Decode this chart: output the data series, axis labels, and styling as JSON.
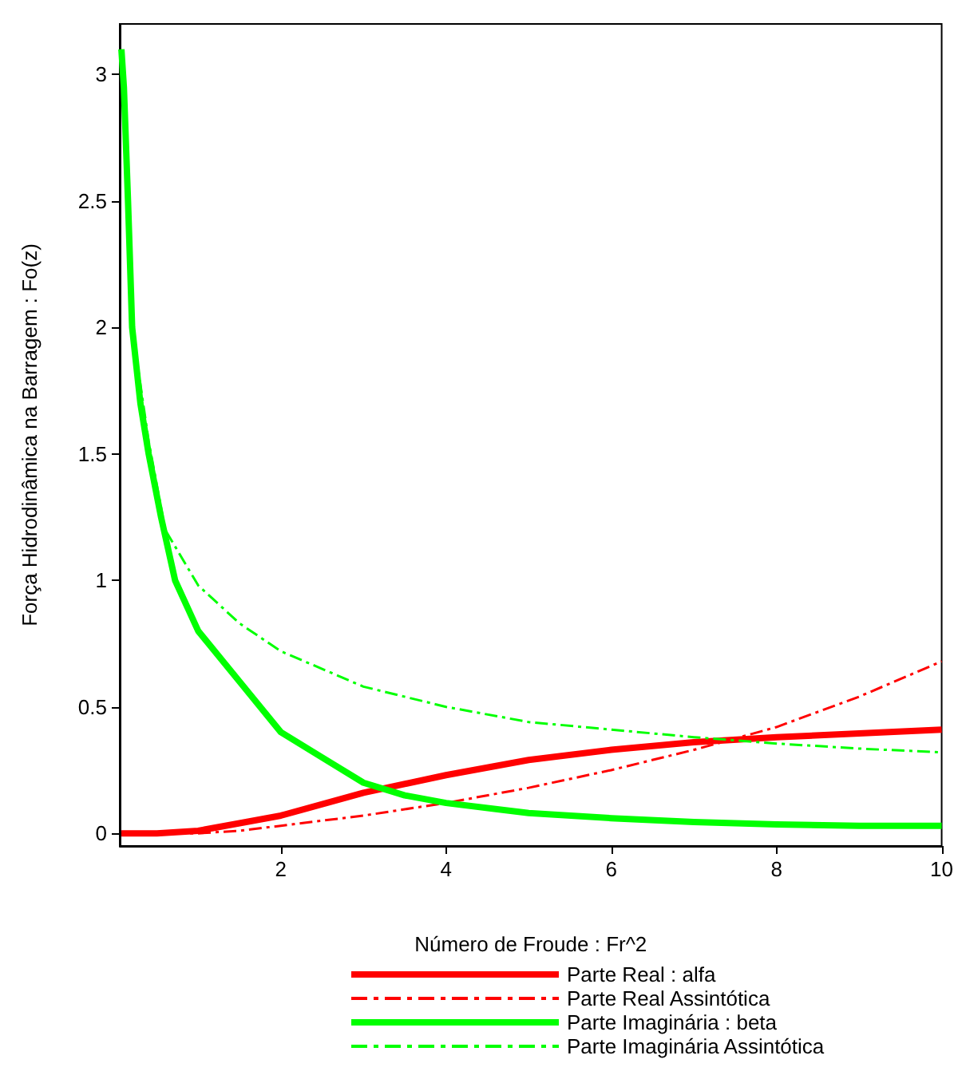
{
  "chart_data": {
    "type": "line",
    "xlabel": "Número de Froude : Fr^2",
    "ylabel": "Força Hidrodinâmica na Barragem : Fo(z)",
    "xlim": [
      0.05,
      10
    ],
    "ylim": [
      -0.05,
      3.2
    ],
    "xticks": [
      2,
      4,
      6,
      8,
      10
    ],
    "yticks": [
      0,
      0.5,
      1,
      1.5,
      2,
      2.5,
      3
    ],
    "grid": false,
    "legend": "bottom",
    "marker": "none",
    "series": [
      {
        "name": "Parte Real : alfa",
        "color": "#ff0000",
        "line_style": "solid",
        "x": [
          0.07,
          0.5,
          1,
          1.5,
          2,
          3,
          4,
          5,
          6,
          7,
          8,
          9,
          10
        ],
        "values": [
          0,
          0,
          0.01,
          0.04,
          0.07,
          0.16,
          0.23,
          0.29,
          0.33,
          0.36,
          0.38,
          0.395,
          0.41
        ]
      },
      {
        "name": "Parte Real Assintótica",
        "color": "#ff0000",
        "line_style": "dashed",
        "x": [
          0.07,
          1,
          1.5,
          2,
          3,
          4,
          5,
          6,
          7,
          8,
          9,
          10
        ],
        "values": [
          0,
          0,
          0.01,
          0.03,
          0.07,
          0.12,
          0.18,
          0.25,
          0.33,
          0.42,
          0.54,
          0.68
        ]
      },
      {
        "name": "Parte Imaginária : beta",
        "color": "#00ff00",
        "line_style": "solid",
        "x": [
          0.07,
          0.1,
          0.15,
          0.2,
          0.3,
          0.4,
          0.55,
          0.72,
          1,
          1.5,
          2,
          2.5,
          3,
          3.5,
          4,
          5,
          6,
          7,
          8,
          9,
          10
        ],
        "values": [
          3.1,
          2.95,
          2.5,
          2.0,
          1.7,
          1.5,
          1.25,
          1.0,
          0.8,
          0.6,
          0.4,
          0.3,
          0.2,
          0.15,
          0.12,
          0.08,
          0.06,
          0.045,
          0.035,
          0.03,
          0.03
        ]
      },
      {
        "name": "Parte Imaginária Assintótica",
        "color": "#00ff00",
        "line_style": "dashed",
        "x": [
          0.07,
          0.2,
          0.4,
          0.6,
          1,
          1.5,
          2,
          3,
          4,
          5,
          6,
          7,
          8,
          9,
          10
        ],
        "values": [
          3.1,
          2.0,
          1.55,
          1.2,
          0.98,
          0.83,
          0.72,
          0.58,
          0.5,
          0.44,
          0.41,
          0.38,
          0.355,
          0.335,
          0.32
        ]
      }
    ]
  }
}
